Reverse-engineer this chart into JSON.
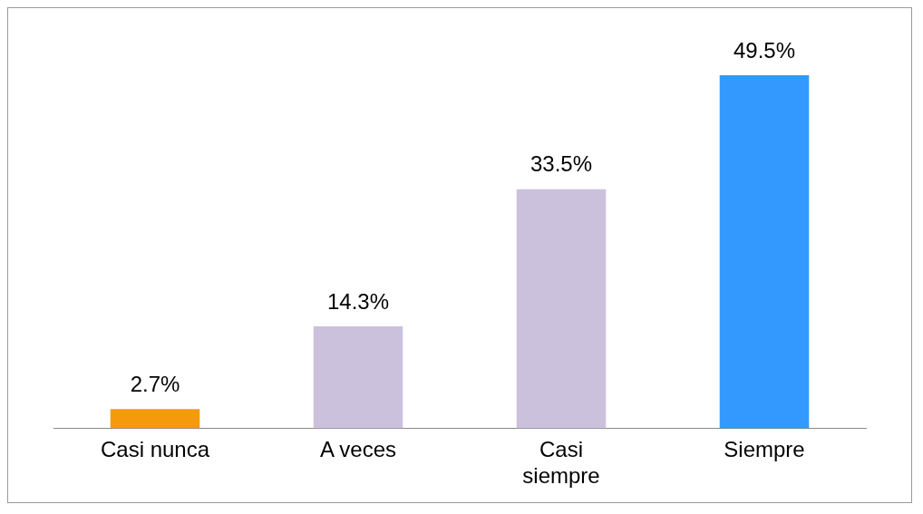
{
  "chart_data": {
    "type": "bar",
    "categories": [
      "Casi nunca",
      "A veces",
      "Casi siempre",
      "Siempre"
    ],
    "values": [
      2.7,
      14.3,
      33.5,
      49.5
    ],
    "colors": [
      "#f59a0c",
      "#ccc1dc",
      "#ccc1dc",
      "#3399ff"
    ],
    "value_labels": [
      "2.7%",
      "14.3%",
      "33.5%",
      "49.5%"
    ],
    "grid": false,
    "legend": false
  }
}
